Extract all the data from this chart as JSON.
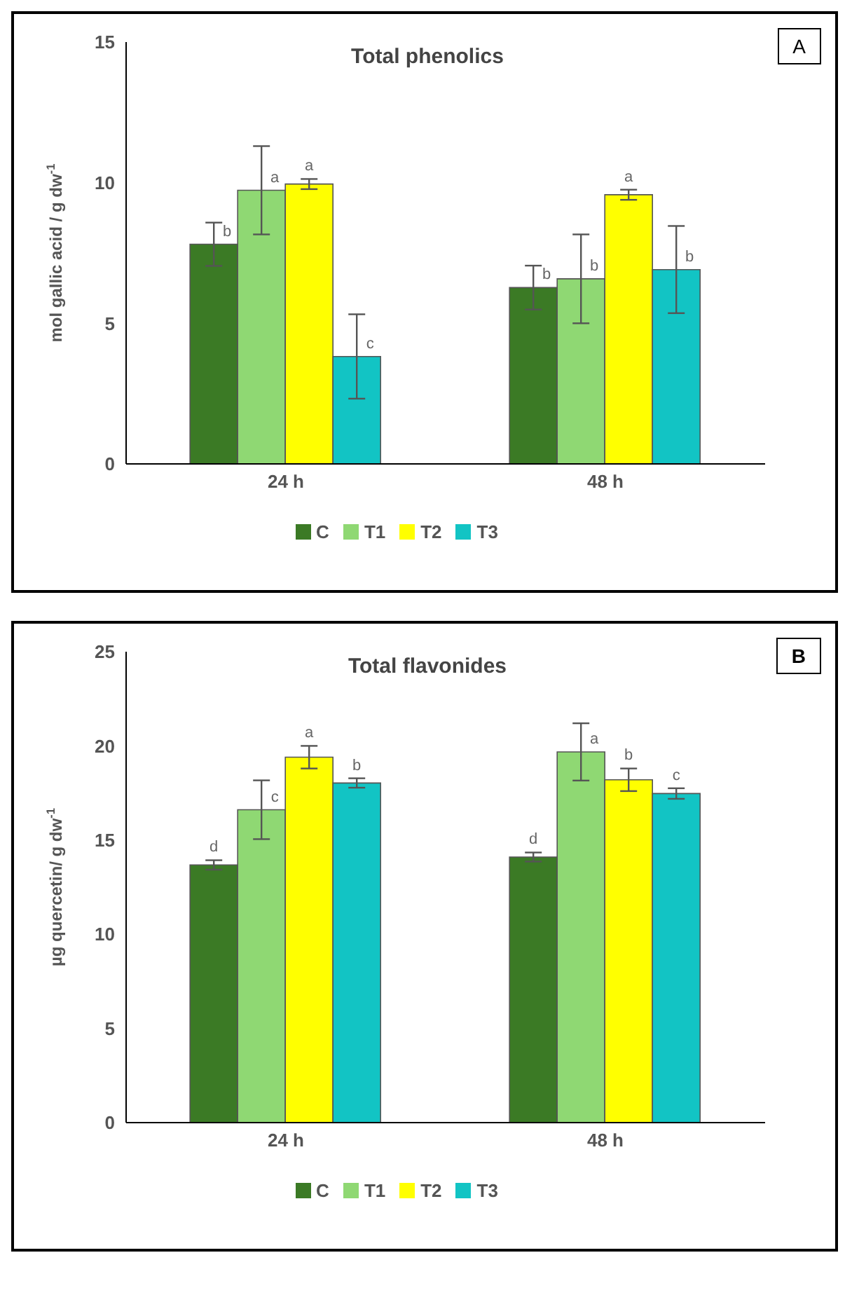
{
  "chart_data": [
    {
      "type": "bar",
      "title": "Total phenolics",
      "ylabel": "mol  gallic acid / g dw$^{-1}$",
      "annotations": [
        "A"
      ],
      "categories": [
        "24 h",
        "48 h"
      ],
      "ylim": [
        0,
        15
      ],
      "yticks": [
        0,
        5,
        10,
        15
      ],
      "grid": false,
      "legend": "bottom",
      "series": [
        {
          "name": "C",
          "color": "#3b7a25",
          "values": [
            7.81,
            6.27
          ],
          "errors": [
            0.77,
            0.78
          ],
          "value_labels": [
            "b",
            "b"
          ]
        },
        {
          "name": "T1",
          "color": "#8fd873",
          "values": [
            9.73,
            6.58
          ],
          "errors": [
            1.57,
            1.58
          ],
          "value_labels": [
            "a",
            "b"
          ]
        },
        {
          "name": "T2",
          "color": "#ffff00",
          "values": [
            9.95,
            9.57
          ],
          "errors": [
            0.18,
            0.18
          ],
          "value_labels": [
            "a",
            "a"
          ]
        },
        {
          "name": "T3",
          "color": "#12c4c4",
          "values": [
            3.82,
            6.91
          ],
          "errors": [
            1.5,
            1.55
          ],
          "value_labels": [
            "c",
            "b"
          ]
        }
      ]
    },
    {
      "type": "bar",
      "title": "Total flavonides",
      "ylabel": "µg quercetin/ g dw$^{-1}$",
      "annotations": [
        "B"
      ],
      "categories": [
        "24 h",
        "48 h"
      ],
      "ylim": [
        0,
        25
      ],
      "yticks": [
        0,
        5,
        10,
        15,
        20,
        25
      ],
      "grid": false,
      "legend": "bottom",
      "series": [
        {
          "name": "C",
          "color": "#3b7a25",
          "values": [
            13.68,
            14.1
          ],
          "errors": [
            0.25,
            0.24
          ],
          "value_labels": [
            "d",
            "d"
          ]
        },
        {
          "name": "T1",
          "color": "#8fd873",
          "values": [
            16.61,
            19.68
          ],
          "errors": [
            1.56,
            1.52
          ],
          "value_labels": [
            "c",
            "a"
          ]
        },
        {
          "name": "T2",
          "color": "#ffff00",
          "values": [
            19.4,
            18.2
          ],
          "errors": [
            0.6,
            0.6
          ],
          "value_labels": [
            "a",
            "b"
          ]
        },
        {
          "name": "T3",
          "color": "#12c4c4",
          "values": [
            18.03,
            17.47
          ],
          "errors": [
            0.25,
            0.28
          ],
          "value_labels": [
            "b",
            "c"
          ]
        }
      ]
    }
  ]
}
